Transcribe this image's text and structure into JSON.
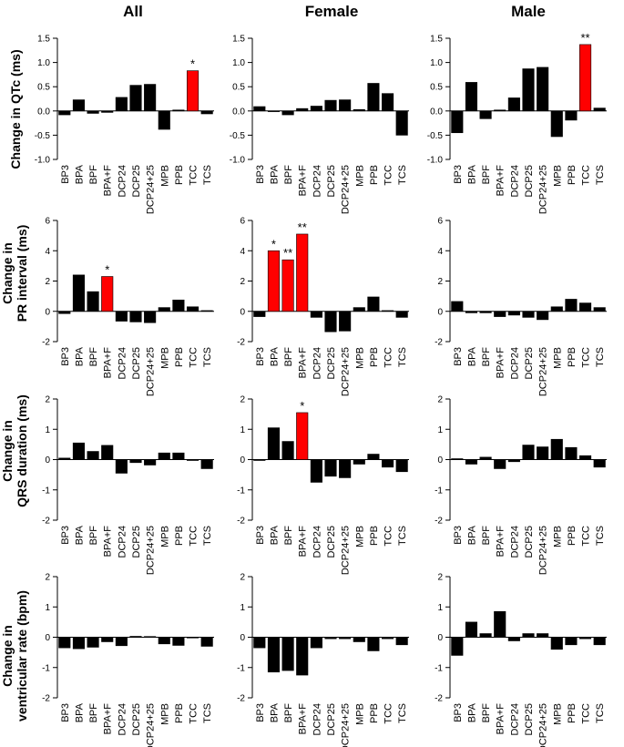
{
  "colors": {
    "bar": "#000000",
    "highlight": "#ff0000",
    "axis": "#000000",
    "background": "#ffffff"
  },
  "column_titles": [
    "All",
    "Female",
    "Male"
  ],
  "row_labels": [
    [
      "Change in QTc (ms)"
    ],
    [
      "Change in",
      "PR interval (ms)"
    ],
    [
      "Change in",
      "QRS duration (ms)"
    ],
    [
      "Change in",
      "ventricular rate (bpm)"
    ]
  ],
  "chart_data": [
    {
      "type": "bar",
      "row": 0,
      "column": 0,
      "title": "All",
      "ylabel": "Change in QTc (ms)",
      "categories": [
        "BP3",
        "BPA",
        "BPF",
        "BPA+F",
        "DCP24",
        "DCP25",
        "DCP24+25",
        "MPB",
        "PPB",
        "TCC",
        "TCS"
      ],
      "values": [
        -0.08,
        0.23,
        -0.05,
        -0.03,
        0.28,
        0.53,
        0.55,
        -0.38,
        0.02,
        0.83,
        -0.06
      ],
      "significant": [
        false,
        false,
        false,
        false,
        false,
        false,
        false,
        false,
        false,
        true,
        false
      ],
      "annotations": [
        "",
        "",
        "",
        "",
        "",
        "",
        "",
        "",
        "",
        "*",
        ""
      ],
      "ylim": [
        -1.0,
        1.5
      ],
      "yticks": [
        -1.0,
        -0.5,
        0.0,
        0.5,
        1.0,
        1.5
      ],
      "ytick_labels": [
        "-1.0",
        "-0.5",
        "0.0",
        "0.5",
        "1.0",
        "1.5"
      ]
    },
    {
      "type": "bar",
      "row": 0,
      "column": 1,
      "title": "Female",
      "ylabel": "Change in QTc (ms)",
      "categories": [
        "BP3",
        "BPA",
        "BPF",
        "BPA+F",
        "DCP24",
        "DCP25",
        "DCP24+25",
        "MPB",
        "PPB",
        "TCC",
        "TCS"
      ],
      "values": [
        0.09,
        -0.01,
        -0.08,
        0.05,
        0.1,
        0.22,
        0.23,
        0.03,
        0.57,
        0.36,
        -0.5
      ],
      "significant": [
        false,
        false,
        false,
        false,
        false,
        false,
        false,
        false,
        false,
        false,
        false
      ],
      "annotations": [
        "",
        "",
        "",
        "",
        "",
        "",
        "",
        "",
        "",
        "",
        ""
      ],
      "ylim": [
        -1.0,
        1.5
      ],
      "yticks": [
        -1.0,
        -0.5,
        0.0,
        0.5,
        1.0,
        1.5
      ],
      "ytick_labels": [
        "-1.0",
        "-0.5",
        "0.0",
        "0.5",
        "1.0",
        "1.5"
      ]
    },
    {
      "type": "bar",
      "row": 0,
      "column": 2,
      "title": "Male",
      "ylabel": "Change in QTc (ms)",
      "categories": [
        "BP3",
        "BPA",
        "BPF",
        "BPA+F",
        "DCP24",
        "DCP25",
        "DCP24+25",
        "MPB",
        "PPB",
        "TCC",
        "TCS"
      ],
      "values": [
        -0.45,
        0.59,
        -0.16,
        0.02,
        0.27,
        0.87,
        0.9,
        -0.53,
        -0.19,
        1.37,
        0.06
      ],
      "significant": [
        false,
        false,
        false,
        false,
        false,
        false,
        false,
        false,
        false,
        true,
        false
      ],
      "annotations": [
        "",
        "",
        "",
        "",
        "",
        "",
        "",
        "",
        "",
        "**",
        ""
      ],
      "ylim": [
        -1.0,
        1.5
      ],
      "yticks": [
        -1.0,
        -0.5,
        0.0,
        0.5,
        1.0,
        1.5
      ],
      "ytick_labels": [
        "-1.0",
        "-0.5",
        "0.0",
        "0.5",
        "1.0",
        "1.5"
      ]
    },
    {
      "type": "bar",
      "row": 1,
      "column": 0,
      "title": "All",
      "ylabel": "Change in PR interval (ms)",
      "categories": [
        "BP3",
        "BPA",
        "BPF",
        "BPA+F",
        "DCP24",
        "DCP25",
        "DCP24+25",
        "MPB",
        "PPB",
        "TCC",
        "TCS"
      ],
      "values": [
        -0.15,
        2.4,
        1.3,
        2.3,
        -0.65,
        -0.7,
        -0.75,
        0.25,
        0.75,
        0.3,
        0.05
      ],
      "significant": [
        false,
        false,
        false,
        true,
        false,
        false,
        false,
        false,
        false,
        false,
        false
      ],
      "annotations": [
        "",
        "",
        "",
        "*",
        "",
        "",
        "",
        "",
        "",
        "",
        ""
      ],
      "ylim": [
        -2,
        6
      ],
      "yticks": [
        -2,
        0,
        2,
        4,
        6
      ],
      "ytick_labels": [
        "-2",
        "0",
        "2",
        "4",
        "6"
      ]
    },
    {
      "type": "bar",
      "row": 1,
      "column": 1,
      "title": "Female",
      "ylabel": "Change in PR interval (ms)",
      "categories": [
        "BP3",
        "BPA",
        "BPF",
        "BPA+F",
        "DCP24",
        "DCP25",
        "DCP24+25",
        "MPB",
        "PPB",
        "TCC",
        "TCS"
      ],
      "values": [
        -0.35,
        4.0,
        3.4,
        5.1,
        -0.4,
        -1.35,
        -1.3,
        0.25,
        0.95,
        0.05,
        -0.4
      ],
      "significant": [
        false,
        true,
        true,
        true,
        false,
        false,
        false,
        false,
        false,
        false,
        false
      ],
      "annotations": [
        "",
        "*",
        "**",
        "**",
        "",
        "",
        "",
        "",
        "",
        "",
        ""
      ],
      "ylim": [
        -2,
        6
      ],
      "yticks": [
        -2,
        0,
        2,
        4,
        6
      ],
      "ytick_labels": [
        "-2",
        "0",
        "2",
        "4",
        "6"
      ]
    },
    {
      "type": "bar",
      "row": 1,
      "column": 2,
      "title": "Male",
      "ylabel": "Change in PR interval (ms)",
      "categories": [
        "BP3",
        "BPA",
        "BPF",
        "BPA+F",
        "DCP24",
        "DCP25",
        "DCP24+25",
        "MPB",
        "PPB",
        "TCC",
        "TCS"
      ],
      "values": [
        0.65,
        -0.1,
        -0.1,
        -0.35,
        -0.25,
        -0.4,
        -0.55,
        0.3,
        0.8,
        0.55,
        0.25
      ],
      "significant": [
        false,
        false,
        false,
        false,
        false,
        false,
        false,
        false,
        false,
        false,
        false
      ],
      "annotations": [
        "",
        "",
        "",
        "",
        "",
        "",
        "",
        "",
        "",
        "",
        ""
      ],
      "ylim": [
        -2,
        6
      ],
      "yticks": [
        -2,
        0,
        2,
        4,
        6
      ],
      "ytick_labels": [
        "-2",
        "0",
        "2",
        "4",
        "6"
      ]
    },
    {
      "type": "bar",
      "row": 2,
      "column": 0,
      "title": "All",
      "ylabel": "Change in QRS duration (ms)",
      "categories": [
        "BP3",
        "BPA",
        "BPF",
        "BPA+F",
        "DCP24",
        "DCP25",
        "DCP24+25",
        "MPB",
        "PPB",
        "TCC",
        "TCS"
      ],
      "values": [
        0.05,
        0.55,
        0.27,
        0.47,
        -0.45,
        -0.1,
        -0.18,
        0.22,
        0.22,
        -0.03,
        -0.3
      ],
      "significant": [
        false,
        false,
        false,
        false,
        false,
        false,
        false,
        false,
        false,
        false,
        false
      ],
      "annotations": [
        "",
        "",
        "",
        "",
        "",
        "",
        "",
        "",
        "",
        "",
        ""
      ],
      "ylim": [
        -2,
        2
      ],
      "yticks": [
        -2,
        -1,
        0,
        1,
        2
      ],
      "ytick_labels": [
        "-2",
        "-1",
        "0",
        "1",
        "2"
      ]
    },
    {
      "type": "bar",
      "row": 2,
      "column": 1,
      "title": "Female",
      "ylabel": "Change in QRS duration (ms)",
      "categories": [
        "BP3",
        "BPA",
        "BPF",
        "BPA+F",
        "DCP24",
        "DCP25",
        "DCP24+25",
        "MPB",
        "PPB",
        "TCC",
        "TCS"
      ],
      "values": [
        -0.03,
        1.05,
        0.6,
        1.55,
        -0.75,
        -0.55,
        -0.6,
        -0.15,
        0.18,
        -0.25,
        -0.4
      ],
      "significant": [
        false,
        false,
        false,
        true,
        false,
        false,
        false,
        false,
        false,
        false,
        false
      ],
      "annotations": [
        "",
        "",
        "",
        "*",
        "",
        "",
        "",
        "",
        "",
        "",
        ""
      ],
      "ylim": [
        -2,
        2
      ],
      "yticks": [
        -2,
        -1,
        0,
        1,
        2
      ],
      "ytick_labels": [
        "-2",
        "-1",
        "0",
        "1",
        "2"
      ]
    },
    {
      "type": "bar",
      "row": 2,
      "column": 2,
      "title": "Male",
      "ylabel": "Change in QRS duration (ms)",
      "categories": [
        "BP3",
        "BPA",
        "BPF",
        "BPA+F",
        "DCP24",
        "DCP25",
        "DCP24+25",
        "MPB",
        "PPB",
        "TCC",
        "TCS"
      ],
      "values": [
        0.03,
        -0.15,
        0.08,
        -0.3,
        -0.07,
        0.48,
        0.42,
        0.67,
        0.4,
        0.13,
        -0.25
      ],
      "significant": [
        false,
        false,
        false,
        false,
        false,
        false,
        false,
        false,
        false,
        false,
        false
      ],
      "annotations": [
        "",
        "",
        "",
        "",
        "",
        "",
        "",
        "",
        "",
        "",
        ""
      ],
      "ylim": [
        -2,
        2
      ],
      "yticks": [
        -2,
        -1,
        0,
        1,
        2
      ],
      "ytick_labels": [
        "-2",
        "-1",
        "0",
        "1",
        "2"
      ]
    },
    {
      "type": "bar",
      "row": 3,
      "column": 0,
      "title": "All",
      "ylabel": "Change in ventricular rate (bpm)",
      "categories": [
        "BP3",
        "BPA",
        "BPF",
        "BPA+F",
        "DCP24",
        "DCP25",
        "DCP24+25",
        "MPB",
        "PPB",
        "TCC",
        "TCS"
      ],
      "values": [
        -0.35,
        -0.38,
        -0.33,
        -0.15,
        -0.28,
        0.03,
        0.02,
        -0.22,
        -0.27,
        -0.01,
        -0.3
      ],
      "significant": [
        false,
        false,
        false,
        false,
        false,
        false,
        false,
        false,
        false,
        false,
        false
      ],
      "annotations": [
        "",
        "",
        "",
        "",
        "",
        "",
        "",
        "",
        "",
        "",
        ""
      ],
      "ylim": [
        -2,
        2
      ],
      "yticks": [
        -2,
        -1,
        0,
        1,
        2
      ],
      "ytick_labels": [
        "-2",
        "-1",
        "0",
        "1",
        "2"
      ]
    },
    {
      "type": "bar",
      "row": 3,
      "column": 1,
      "title": "Female",
      "ylabel": "Change in ventricular rate (bpm)",
      "categories": [
        "BP3",
        "BPA",
        "BPF",
        "BPA+F",
        "DCP24",
        "DCP25",
        "DCP24+25",
        "MPB",
        "PPB",
        "TCC",
        "TCS"
      ],
      "values": [
        -0.35,
        -1.15,
        -1.1,
        -1.25,
        -0.35,
        -0.05,
        -0.05,
        -0.15,
        -0.45,
        -0.05,
        -0.25
      ],
      "significant": [
        false,
        false,
        false,
        false,
        false,
        false,
        false,
        false,
        false,
        false,
        false
      ],
      "annotations": [
        "",
        "",
        "",
        "",
        "",
        "",
        "",
        "",
        "",
        "",
        ""
      ],
      "ylim": [
        -2,
        2
      ],
      "yticks": [
        -2,
        -1,
        0,
        1,
        2
      ],
      "ytick_labels": [
        "-2",
        "-1",
        "0",
        "1",
        "2"
      ]
    },
    {
      "type": "bar",
      "row": 3,
      "column": 2,
      "title": "Male",
      "ylabel": "Change in ventricular rate (bpm)",
      "categories": [
        "BP3",
        "BPA",
        "BPF",
        "BPA+F",
        "DCP24",
        "DCP25",
        "DCP24+25",
        "MPB",
        "PPB",
        "TCC",
        "TCS"
      ],
      "values": [
        -0.6,
        0.5,
        0.12,
        0.85,
        -0.12,
        0.12,
        0.12,
        -0.4,
        -0.25,
        -0.05,
        -0.25
      ],
      "significant": [
        false,
        false,
        false,
        false,
        false,
        false,
        false,
        false,
        false,
        false,
        false
      ],
      "annotations": [
        "",
        "",
        "",
        "",
        "",
        "",
        "",
        "",
        "",
        "",
        ""
      ],
      "ylim": [
        -2,
        2
      ],
      "yticks": [
        -2,
        -1,
        0,
        1,
        2
      ],
      "ytick_labels": [
        "-2",
        "-1",
        "0",
        "1",
        "2"
      ]
    }
  ]
}
